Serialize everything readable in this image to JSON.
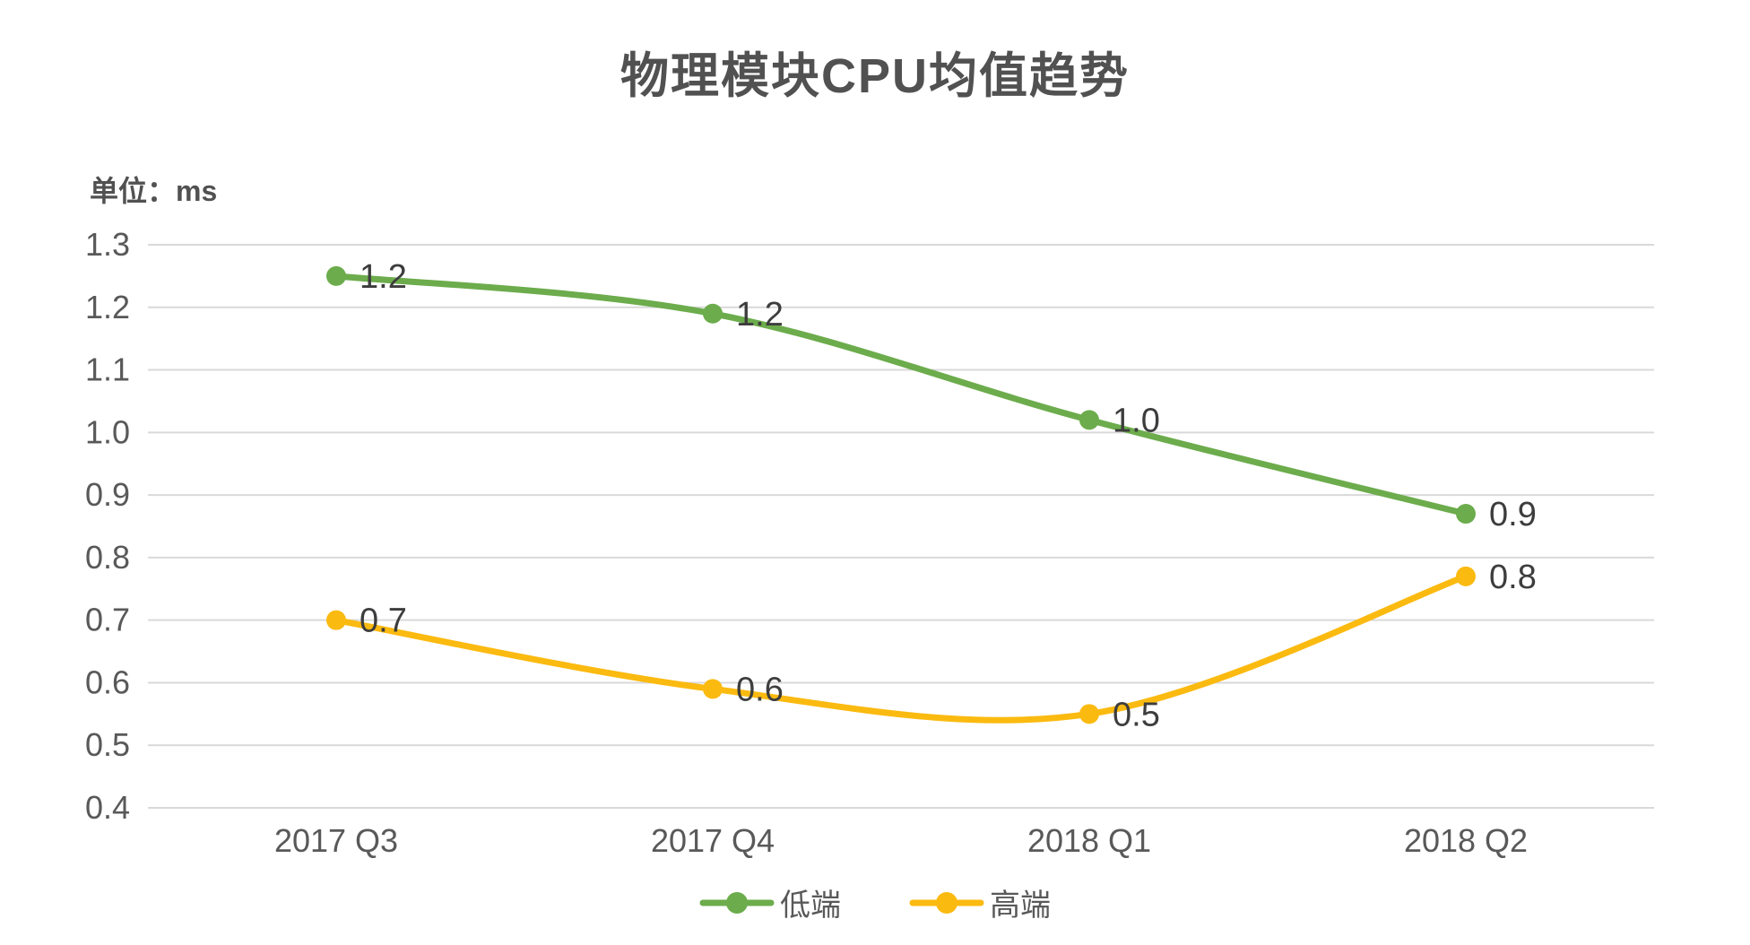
{
  "title": "物理模块CPU均值趋势",
  "unit_label": "单位：ms",
  "colors": {
    "series_low_end": "#6CAC4C",
    "series_high_end": "#FBBA10",
    "title_text": "#515151",
    "axis_text": "#595959",
    "data_label_text": "#3D3D3D",
    "grid_line": "#D9D9D9",
    "background": "#FFFFFF"
  },
  "chart_data": {
    "type": "line",
    "title": "物理模块CPU均值趋势",
    "ylabel": "单位：ms",
    "xlabel": "",
    "categories": [
      "2017 Q3",
      "2017 Q4",
      "2018 Q1",
      "2018 Q2"
    ],
    "series": [
      {
        "name": "低端",
        "color": "#6CAC4C",
        "values": [
          1.2,
          1.2,
          1.0,
          0.9
        ],
        "labels": [
          "1.2",
          "1.2",
          "1.0",
          "0.9"
        ],
        "plotted_values": [
          1.25,
          1.19,
          1.02,
          0.87
        ]
      },
      {
        "name": "高端",
        "color": "#FBBA10",
        "values": [
          0.7,
          0.6,
          0.5,
          0.8
        ],
        "labels": [
          "0.7",
          "0.6",
          "0.5",
          "0.8"
        ],
        "plotted_values": [
          0.7,
          0.59,
          0.55,
          0.77
        ]
      }
    ],
    "ylim": [
      0.4,
      1.3
    ],
    "ytick_step": 0.1,
    "grid": true,
    "smooth": true,
    "legend_position": "bottom"
  }
}
